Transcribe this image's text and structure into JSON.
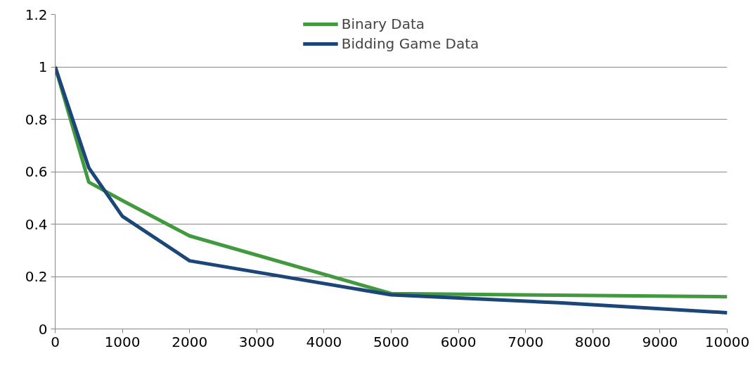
{
  "chart_data": {
    "type": "line",
    "xlim": [
      0,
      10000
    ],
    "ylim": [
      0,
      1.2
    ],
    "xticks": [
      0,
      1000,
      2000,
      3000,
      4000,
      5000,
      6000,
      7000,
      8000,
      9000,
      10000
    ],
    "yticks": [
      0,
      0.2,
      0.4,
      0.6,
      0.8,
      1,
      1.2
    ],
    "grid": "y",
    "legend": "top",
    "series": [
      {
        "name": "Binary Data",
        "color": "#43993f",
        "x": [
          0,
          500,
          1000,
          2000,
          5000,
          10000
        ],
        "values": [
          1,
          0.56,
          0.49,
          0.355,
          0.135,
          0.123
        ]
      },
      {
        "name": "Bidding Game Data",
        "color": "#1b4677",
        "x": [
          0,
          500,
          1000,
          2000,
          5000,
          7500,
          10000
        ],
        "values": [
          1,
          0.615,
          0.43,
          0.26,
          0.13,
          0.1,
          0.062
        ]
      }
    ]
  }
}
